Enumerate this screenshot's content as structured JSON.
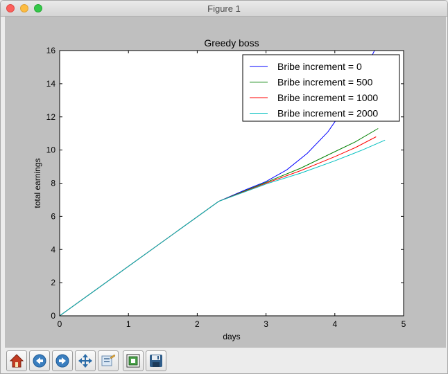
{
  "window": {
    "title": "Figure 1"
  },
  "toolbar": {
    "buttons": [
      {
        "icon": "home-icon"
      },
      {
        "icon": "back-arrow-icon"
      },
      {
        "icon": "forward-arrow-icon"
      },
      {
        "icon": "pan-move-icon"
      },
      {
        "icon": "zoom-rectangle-icon"
      },
      {
        "icon": "configure-subplots-icon"
      },
      {
        "icon": "save-floppy-icon"
      }
    ]
  },
  "colors": {
    "series_0": "#0000ff",
    "series_500": "#008000",
    "series_1000": "#ff0000",
    "series_2000": "#00bfbf",
    "canvas_background": "#bfbfbf"
  },
  "chart_data": {
    "type": "line",
    "title": "Greedy boss",
    "xlabel": "days",
    "ylabel": "total earnings",
    "xlim": [
      0,
      5
    ],
    "ylim": [
      0,
      16
    ],
    "xticks": [
      "0",
      "1",
      "2",
      "3",
      "4",
      "5"
    ],
    "yticks": [
      "0",
      "2",
      "4",
      "6",
      "8",
      "10",
      "12",
      "14",
      "16"
    ],
    "grid": false,
    "legend_position": "top-right",
    "series": [
      {
        "name": "Bribe increment = 0",
        "x": [
          0,
          2.31,
          2.7,
          3.0,
          3.3,
          3.6,
          3.9,
          4.2,
          4.4,
          4.6
        ],
        "y": [
          0,
          6.9,
          7.6,
          8.1,
          8.8,
          9.8,
          11.1,
          12.9,
          14.5,
          16.2
        ]
      },
      {
        "name": "Bribe increment = 500",
        "x": [
          0,
          2.31,
          3.0,
          3.5,
          4.0,
          4.3,
          4.63
        ],
        "y": [
          0,
          6.9,
          8.05,
          8.9,
          9.9,
          10.5,
          11.3
        ]
      },
      {
        "name": "Bribe increment = 1000",
        "x": [
          0,
          2.31,
          3.0,
          3.5,
          4.0,
          4.3,
          4.6
        ],
        "y": [
          0,
          6.9,
          8.0,
          8.75,
          9.6,
          10.15,
          10.8
        ]
      },
      {
        "name": "Bribe increment = 2000",
        "x": [
          0,
          2.31,
          3.0,
          3.5,
          4.0,
          4.4,
          4.73
        ],
        "y": [
          0,
          6.9,
          7.95,
          8.6,
          9.35,
          10.0,
          10.6
        ]
      }
    ]
  }
}
